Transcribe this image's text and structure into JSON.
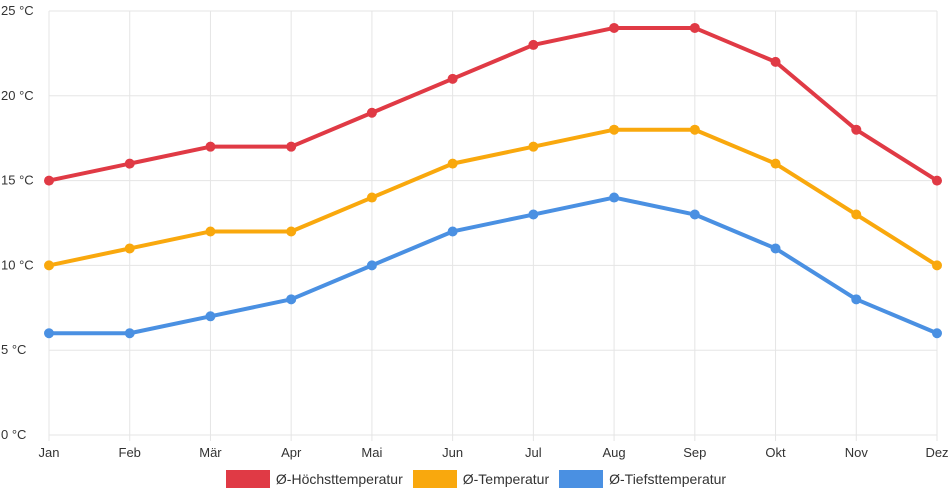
{
  "chart_data": {
    "type": "line",
    "title": "",
    "xlabel": "",
    "ylabel": "",
    "categories": [
      "Jan",
      "Feb",
      "Mär",
      "Apr",
      "Mai",
      "Jun",
      "Jul",
      "Aug",
      "Sep",
      "Okt",
      "Nov",
      "Dez"
    ],
    "ylim": [
      0,
      25
    ],
    "y_ticks": [
      0,
      5,
      10,
      15,
      20,
      25
    ],
    "y_tick_labels": [
      "0 °C",
      "5 °C",
      "10 °C",
      "15 °C",
      "20 °C",
      "25 °C"
    ],
    "grid": true,
    "legend_position": "bottom",
    "series": [
      {
        "name": "Ø-Höchsttemperatur",
        "color": "#e03a45",
        "values": [
          15,
          16,
          17,
          17,
          19,
          21,
          23,
          24,
          24,
          22,
          18,
          15
        ]
      },
      {
        "name": "Ø-Temperatur",
        "color": "#f9a80d",
        "values": [
          10,
          11,
          12,
          12,
          14,
          16,
          17,
          18,
          18,
          16,
          13,
          10
        ]
      },
      {
        "name": "Ø-Tiefsttemperatur",
        "color": "#4a90e2",
        "values": [
          6,
          6,
          7,
          8,
          10,
          12,
          13,
          14,
          13,
          11,
          8,
          6
        ]
      }
    ]
  }
}
